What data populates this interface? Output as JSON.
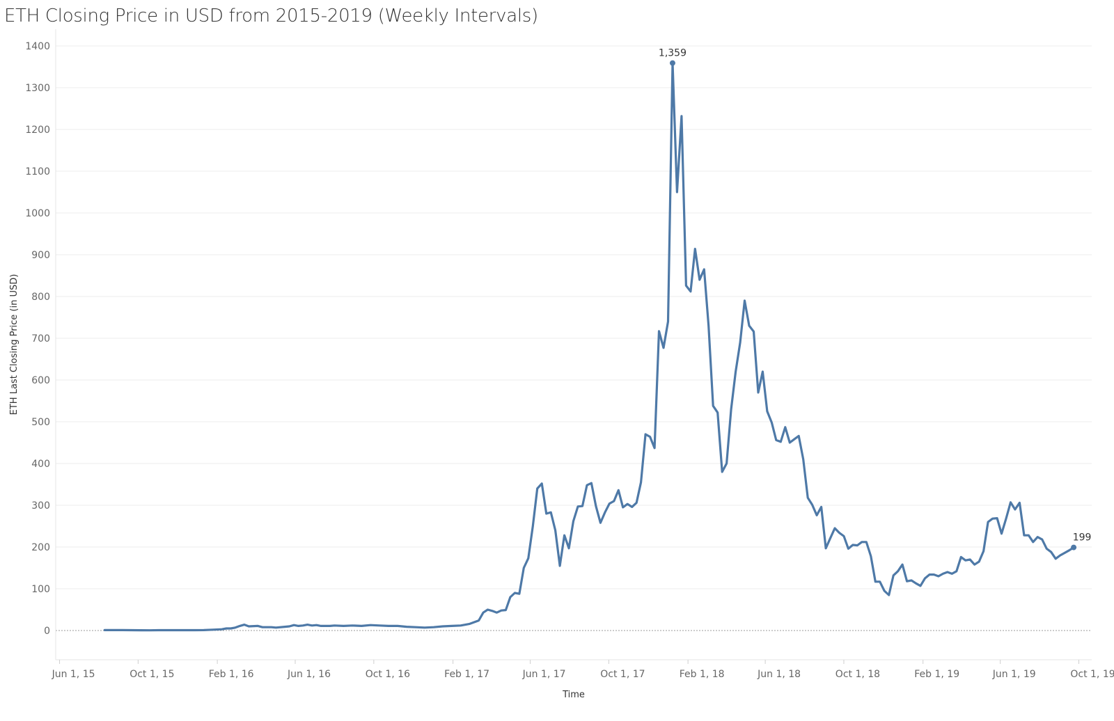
{
  "chart_data": {
    "type": "line",
    "title": "ETH Closing Price in USD from 2015-2019 (Weekly Intervals)",
    "xlabel": "Time",
    "ylabel": "ETH Last Closing Price (in USD)",
    "ylim": [
      -70,
      1440
    ],
    "yticks": [
      0,
      100,
      200,
      300,
      400,
      500,
      600,
      700,
      800,
      900,
      1000,
      1100,
      1200,
      1300,
      1400
    ],
    "xlim": [
      "2015-05-26",
      "2019-10-21"
    ],
    "xticks": [
      {
        "date": "2015-06-01",
        "label": "Jun 1, 15"
      },
      {
        "date": "2015-10-01",
        "label": "Oct 1, 15"
      },
      {
        "date": "2016-02-01",
        "label": "Feb 1, 16"
      },
      {
        "date": "2016-06-01",
        "label": "Jun 1, 16"
      },
      {
        "date": "2016-10-01",
        "label": "Oct 1, 16"
      },
      {
        "date": "2017-02-01",
        "label": "Feb 1, 17"
      },
      {
        "date": "2017-06-01",
        "label": "Jun 1, 17"
      },
      {
        "date": "2017-10-01",
        "label": "Oct 1, 17"
      },
      {
        "date": "2018-02-01",
        "label": "Feb 1, 18"
      },
      {
        "date": "2018-06-01",
        "label": "Jun 1, 18"
      },
      {
        "date": "2018-10-01",
        "label": "Oct 1, 18"
      },
      {
        "date": "2019-02-01",
        "label": "Feb 1, 19"
      },
      {
        "date": "2019-06-01",
        "label": "Jun 1, 19"
      },
      {
        "date": "2019-10-01",
        "label": "Oct 1, 19"
      }
    ],
    "grid": "horizontal",
    "zero_line": "dotted",
    "line_color": "#4e79a7",
    "annotations": [
      {
        "date": "2018-01-08",
        "value": 1359,
        "text": "1,359"
      },
      {
        "date": "2019-09-23",
        "value": 199,
        "text": "199"
      }
    ],
    "series": [
      {
        "points": [
          [
            "2015-08-10",
            1
          ],
          [
            "2015-08-24",
            1
          ],
          [
            "2015-09-07",
            1
          ],
          [
            "2015-09-21",
            0.9
          ],
          [
            "2015-10-05",
            0.7
          ],
          [
            "2015-10-19",
            0.5
          ],
          [
            "2015-11-02",
            0.9
          ],
          [
            "2015-11-16",
            0.9
          ],
          [
            "2015-11-30",
            0.8
          ],
          [
            "2015-12-14",
            0.9
          ],
          [
            "2015-12-28",
            0.9
          ],
          [
            "2016-01-11",
            1
          ],
          [
            "2016-01-25",
            2
          ],
          [
            "2016-02-08",
            3
          ],
          [
            "2016-02-15",
            5
          ],
          [
            "2016-02-22",
            5
          ],
          [
            "2016-02-29",
            7
          ],
          [
            "2016-03-07",
            11
          ],
          [
            "2016-03-14",
            14
          ],
          [
            "2016-03-21",
            10
          ],
          [
            "2016-04-04",
            11
          ],
          [
            "2016-04-11",
            8
          ],
          [
            "2016-04-25",
            8
          ],
          [
            "2016-05-02",
            7
          ],
          [
            "2016-05-16",
            9
          ],
          [
            "2016-05-23",
            10
          ],
          [
            "2016-05-30",
            13
          ],
          [
            "2016-06-06",
            11
          ],
          [
            "2016-06-13",
            12
          ],
          [
            "2016-06-20",
            14
          ],
          [
            "2016-06-27",
            12
          ],
          [
            "2016-07-04",
            13
          ],
          [
            "2016-07-11",
            11
          ],
          [
            "2016-07-25",
            11
          ],
          [
            "2016-08-01",
            12
          ],
          [
            "2016-08-15",
            11
          ],
          [
            "2016-08-29",
            12
          ],
          [
            "2016-09-12",
            11
          ],
          [
            "2016-09-26",
            13
          ],
          [
            "2016-10-10",
            12
          ],
          [
            "2016-10-24",
            11
          ],
          [
            "2016-11-07",
            11
          ],
          [
            "2016-11-21",
            9
          ],
          [
            "2016-12-05",
            8
          ],
          [
            "2016-12-19",
            7
          ],
          [
            "2017-01-02",
            8
          ],
          [
            "2017-01-16",
            10
          ],
          [
            "2017-01-30",
            11
          ],
          [
            "2017-02-13",
            12
          ],
          [
            "2017-02-27",
            16
          ],
          [
            "2017-03-13",
            24
          ],
          [
            "2017-03-20",
            43
          ],
          [
            "2017-03-27",
            50
          ],
          [
            "2017-04-03",
            47
          ],
          [
            "2017-04-10",
            43
          ],
          [
            "2017-04-17",
            48
          ],
          [
            "2017-04-24",
            49
          ],
          [
            "2017-05-01",
            80
          ],
          [
            "2017-05-08",
            90
          ],
          [
            "2017-05-15",
            88
          ],
          [
            "2017-05-22",
            150
          ],
          [
            "2017-05-29",
            173
          ],
          [
            "2017-06-05",
            250
          ],
          [
            "2017-06-12",
            340
          ],
          [
            "2017-06-19",
            352
          ],
          [
            "2017-06-26",
            280
          ],
          [
            "2017-07-03",
            283
          ],
          [
            "2017-07-10",
            240
          ],
          [
            "2017-07-17",
            155
          ],
          [
            "2017-07-24",
            228
          ],
          [
            "2017-07-31",
            197
          ],
          [
            "2017-08-07",
            262
          ],
          [
            "2017-08-14",
            297
          ],
          [
            "2017-08-21",
            298
          ],
          [
            "2017-08-28",
            348
          ],
          [
            "2017-09-04",
            353
          ],
          [
            "2017-09-11",
            298
          ],
          [
            "2017-09-18",
            258
          ],
          [
            "2017-09-25",
            283
          ],
          [
            "2017-10-02",
            304
          ],
          [
            "2017-10-09",
            310
          ],
          [
            "2017-10-16",
            336
          ],
          [
            "2017-10-23",
            295
          ],
          [
            "2017-10-30",
            303
          ],
          [
            "2017-11-06",
            296
          ],
          [
            "2017-11-13",
            306
          ],
          [
            "2017-11-20",
            355
          ],
          [
            "2017-11-27",
            470
          ],
          [
            "2017-12-04",
            464
          ],
          [
            "2017-12-11",
            437
          ],
          [
            "2017-12-18",
            717
          ],
          [
            "2017-12-25",
            677
          ],
          [
            "2018-01-01",
            740
          ],
          [
            "2018-01-08",
            1359
          ],
          [
            "2018-01-15",
            1050
          ],
          [
            "2018-01-22",
            1232
          ],
          [
            "2018-01-29",
            826
          ],
          [
            "2018-02-05",
            812
          ],
          [
            "2018-02-12",
            914
          ],
          [
            "2018-02-19",
            840
          ],
          [
            "2018-02-26",
            865
          ],
          [
            "2018-03-05",
            730
          ],
          [
            "2018-03-12",
            538
          ],
          [
            "2018-03-19",
            522
          ],
          [
            "2018-03-26",
            380
          ],
          [
            "2018-04-02",
            400
          ],
          [
            "2018-04-09",
            530
          ],
          [
            "2018-04-16",
            620
          ],
          [
            "2018-04-23",
            690
          ],
          [
            "2018-04-30",
            790
          ],
          [
            "2018-05-07",
            730
          ],
          [
            "2018-05-14",
            716
          ],
          [
            "2018-05-21",
            570
          ],
          [
            "2018-05-28",
            620
          ],
          [
            "2018-06-04",
            525
          ],
          [
            "2018-06-11",
            498
          ],
          [
            "2018-06-18",
            456
          ],
          [
            "2018-06-25",
            452
          ],
          [
            "2018-07-02",
            487
          ],
          [
            "2018-07-09",
            450
          ],
          [
            "2018-07-16",
            458
          ],
          [
            "2018-07-23",
            466
          ],
          [
            "2018-07-30",
            410
          ],
          [
            "2018-08-06",
            318
          ],
          [
            "2018-08-13",
            301
          ],
          [
            "2018-08-20",
            276
          ],
          [
            "2018-08-27",
            296
          ],
          [
            "2018-09-03",
            197
          ],
          [
            "2018-09-10",
            221
          ],
          [
            "2018-09-17",
            245
          ],
          [
            "2018-09-24",
            234
          ],
          [
            "2018-10-01",
            226
          ],
          [
            "2018-10-08",
            196
          ],
          [
            "2018-10-15",
            205
          ],
          [
            "2018-10-22",
            204
          ],
          [
            "2018-10-29",
            212
          ],
          [
            "2018-11-05",
            212
          ],
          [
            "2018-11-12",
            178
          ],
          [
            "2018-11-19",
            117
          ],
          [
            "2018-11-26",
            117
          ],
          [
            "2018-12-03",
            95
          ],
          [
            "2018-12-10",
            85
          ],
          [
            "2018-12-17",
            132
          ],
          [
            "2018-12-24",
            142
          ],
          [
            "2018-12-31",
            158
          ],
          [
            "2019-01-07",
            118
          ],
          [
            "2019-01-14",
            120
          ],
          [
            "2019-01-21",
            113
          ],
          [
            "2019-01-28",
            107
          ],
          [
            "2019-02-04",
            125
          ],
          [
            "2019-02-11",
            134
          ],
          [
            "2019-02-18",
            134
          ],
          [
            "2019-02-25",
            130
          ],
          [
            "2019-03-04",
            136
          ],
          [
            "2019-03-11",
            140
          ],
          [
            "2019-03-18",
            136
          ],
          [
            "2019-03-25",
            142
          ],
          [
            "2019-04-01",
            176
          ],
          [
            "2019-04-08",
            168
          ],
          [
            "2019-04-15",
            170
          ],
          [
            "2019-04-22",
            158
          ],
          [
            "2019-04-29",
            165
          ],
          [
            "2019-05-06",
            190
          ],
          [
            "2019-05-13",
            260
          ],
          [
            "2019-05-20",
            268
          ],
          [
            "2019-05-27",
            269
          ],
          [
            "2019-06-03",
            232
          ],
          [
            "2019-06-10",
            268
          ],
          [
            "2019-06-17",
            307
          ],
          [
            "2019-06-24",
            290
          ],
          [
            "2019-07-01",
            306
          ],
          [
            "2019-07-08",
            228
          ],
          [
            "2019-07-15",
            228
          ],
          [
            "2019-07-22",
            212
          ],
          [
            "2019-07-29",
            224
          ],
          [
            "2019-08-05",
            218
          ],
          [
            "2019-08-12",
            196
          ],
          [
            "2019-08-19",
            188
          ],
          [
            "2019-08-26",
            172
          ],
          [
            "2019-09-02",
            180
          ],
          [
            "2019-09-16",
            192
          ],
          [
            "2019-09-23",
            199
          ]
        ]
      }
    ]
  }
}
